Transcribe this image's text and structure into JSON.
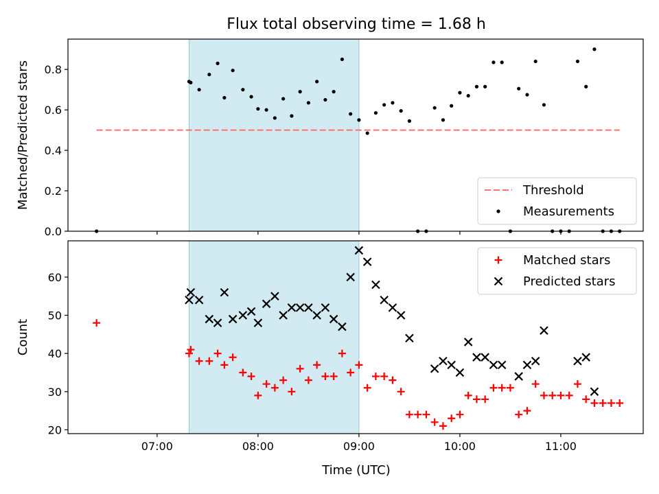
{
  "title": "Flux total observing time = 1.68 h",
  "xlabel": "Time (UTC)",
  "x_ticks": [
    "07:00",
    "08:00",
    "09:00",
    "10:00",
    "11:00"
  ],
  "colors": {
    "threshold": "#ff7070",
    "measurements": "#000000",
    "matched": "#ff0000",
    "predicted": "#000000",
    "shading": "#add8e6"
  },
  "chart_data": [
    {
      "type": "scatter",
      "panel": "top",
      "ylabel": "Matched/Predicted stars",
      "xlim": [
        "06:07",
        "11:49"
      ],
      "ylim": [
        0,
        0.95
      ],
      "y_ticks": [
        "0.0",
        "0.2",
        "0.4",
        "0.6",
        "0.8"
      ],
      "shaded_interval": [
        "07:19",
        "09:00"
      ],
      "legend_position": "lower right",
      "threshold": {
        "name": "Threshold",
        "value": 0.5,
        "x_range": [
          "06:24",
          "11:35"
        ],
        "style": "dashed"
      },
      "series": [
        {
          "name": "Measurements",
          "marker": "dot",
          "points": [
            [
              "06:24",
              0.0
            ],
            [
              "07:19",
              0.74
            ],
            [
              "07:20",
              0.735
            ],
            [
              "07:25",
              0.7
            ],
            [
              "07:31",
              0.775
            ],
            [
              "07:36",
              0.83
            ],
            [
              "07:40",
              0.66
            ],
            [
              "07:45",
              0.795
            ],
            [
              "07:51",
              0.7
            ],
            [
              "07:56",
              0.665
            ],
            [
              "08:00",
              0.605
            ],
            [
              "08:05",
              0.6
            ],
            [
              "08:10",
              0.56
            ],
            [
              "08:15",
              0.655
            ],
            [
              "08:20",
              0.57
            ],
            [
              "08:25",
              0.69
            ],
            [
              "08:30",
              0.635
            ],
            [
              "08:35",
              0.74
            ],
            [
              "08:40",
              0.65
            ],
            [
              "08:45",
              0.69
            ],
            [
              "08:50",
              0.85
            ],
            [
              "08:55",
              0.58
            ],
            [
              "09:00",
              0.55
            ],
            [
              "09:05",
              0.485
            ],
            [
              "09:10",
              0.585
            ],
            [
              "09:15",
              0.625
            ],
            [
              "09:20",
              0.635
            ],
            [
              "09:25",
              0.595
            ],
            [
              "09:30",
              0.545
            ],
            [
              "09:35",
              0.0
            ],
            [
              "09:40",
              0.0
            ],
            [
              "09:45",
              0.61
            ],
            [
              "09:50",
              0.55
            ],
            [
              "09:55",
              0.62
            ],
            [
              "10:00",
              0.685
            ],
            [
              "10:05",
              0.67
            ],
            [
              "10:10",
              0.715
            ],
            [
              "10:15",
              0.715
            ],
            [
              "10:20",
              0.835
            ],
            [
              "10:25",
              0.835
            ],
            [
              "10:30",
              0.0
            ],
            [
              "10:35",
              0.705
            ],
            [
              "10:40",
              0.675
            ],
            [
              "10:45",
              0.84
            ],
            [
              "10:50",
              0.625
            ],
            [
              "10:55",
              0.0
            ],
            [
              "11:00",
              0.0
            ],
            [
              "11:05",
              0.0
            ],
            [
              "11:10",
              0.84
            ],
            [
              "11:15",
              0.715
            ],
            [
              "11:20",
              0.9
            ],
            [
              "11:25",
              0.0
            ],
            [
              "11:30",
              0.0
            ],
            [
              "11:35",
              0.0
            ]
          ]
        }
      ]
    },
    {
      "type": "scatter",
      "panel": "bottom",
      "ylabel": "Count",
      "xlim": [
        "06:07",
        "11:49"
      ],
      "ylim": [
        19,
        69.5
      ],
      "y_ticks": [
        "20",
        "30",
        "40",
        "50",
        "60"
      ],
      "shaded_interval": [
        "07:19",
        "09:00"
      ],
      "legend_position": "upper right",
      "series": [
        {
          "name": "Matched stars",
          "marker": "plus",
          "points": [
            [
              "06:24",
              48
            ],
            [
              "07:19",
              40
            ],
            [
              "07:20",
              41
            ],
            [
              "07:25",
              38
            ],
            [
              "07:31",
              38
            ],
            [
              "07:36",
              40
            ],
            [
              "07:40",
              37
            ],
            [
              "07:45",
              39
            ],
            [
              "07:51",
              35
            ],
            [
              "07:56",
              34
            ],
            [
              "08:00",
              29
            ],
            [
              "08:05",
              32
            ],
            [
              "08:10",
              31
            ],
            [
              "08:15",
              33
            ],
            [
              "08:20",
              30
            ],
            [
              "08:25",
              36
            ],
            [
              "08:30",
              33
            ],
            [
              "08:35",
              37
            ],
            [
              "08:40",
              34
            ],
            [
              "08:45",
              34
            ],
            [
              "08:50",
              40
            ],
            [
              "08:55",
              35
            ],
            [
              "09:00",
              37
            ],
            [
              "09:05",
              31
            ],
            [
              "09:10",
              34
            ],
            [
              "09:15",
              34
            ],
            [
              "09:20",
              33
            ],
            [
              "09:25",
              30
            ],
            [
              "09:30",
              24
            ],
            [
              "09:35",
              24
            ],
            [
              "09:40",
              24
            ],
            [
              "09:45",
              22
            ],
            [
              "09:50",
              21
            ],
            [
              "09:55",
              23
            ],
            [
              "10:00",
              24
            ],
            [
              "10:05",
              29
            ],
            [
              "10:10",
              28
            ],
            [
              "10:15",
              28
            ],
            [
              "10:20",
              31
            ],
            [
              "10:25",
              31
            ],
            [
              "10:30",
              31
            ],
            [
              "10:35",
              24
            ],
            [
              "10:40",
              25
            ],
            [
              "10:45",
              32
            ],
            [
              "10:50",
              29
            ],
            [
              "10:55",
              29
            ],
            [
              "11:00",
              29
            ],
            [
              "11:05",
              29
            ],
            [
              "11:10",
              32
            ],
            [
              "11:15",
              28
            ],
            [
              "11:20",
              27
            ],
            [
              "11:25",
              27
            ],
            [
              "11:30",
              27
            ],
            [
              "11:35",
              27
            ]
          ]
        },
        {
          "name": "Predicted stars",
          "marker": "x",
          "points": [
            [
              "07:19",
              54
            ],
            [
              "07:20",
              56
            ],
            [
              "07:25",
              54
            ],
            [
              "07:31",
              49
            ],
            [
              "07:36",
              48
            ],
            [
              "07:40",
              56
            ],
            [
              "07:45",
              49
            ],
            [
              "07:51",
              50
            ],
            [
              "07:56",
              51
            ],
            [
              "08:00",
              48
            ],
            [
              "08:05",
              53
            ],
            [
              "08:10",
              55
            ],
            [
              "08:15",
              50
            ],
            [
              "08:20",
              52
            ],
            [
              "08:25",
              52
            ],
            [
              "08:30",
              52
            ],
            [
              "08:35",
              50
            ],
            [
              "08:40",
              52
            ],
            [
              "08:45",
              49
            ],
            [
              "08:50",
              47
            ],
            [
              "08:55",
              60
            ],
            [
              "09:00",
              67
            ],
            [
              "09:05",
              64
            ],
            [
              "09:10",
              58
            ],
            [
              "09:15",
              54
            ],
            [
              "09:20",
              52
            ],
            [
              "09:25",
              50
            ],
            [
              "09:30",
              44
            ],
            [
              "09:45",
              36
            ],
            [
              "09:50",
              38
            ],
            [
              "09:55",
              37
            ],
            [
              "10:00",
              35
            ],
            [
              "10:05",
              43
            ],
            [
              "10:10",
              39
            ],
            [
              "10:15",
              39
            ],
            [
              "10:20",
              37
            ],
            [
              "10:25",
              37
            ],
            [
              "10:35",
              34
            ],
            [
              "10:40",
              37
            ],
            [
              "10:45",
              38
            ],
            [
              "10:50",
              46
            ],
            [
              "11:10",
              38
            ],
            [
              "11:15",
              39
            ],
            [
              "11:20",
              30
            ]
          ]
        }
      ]
    }
  ]
}
